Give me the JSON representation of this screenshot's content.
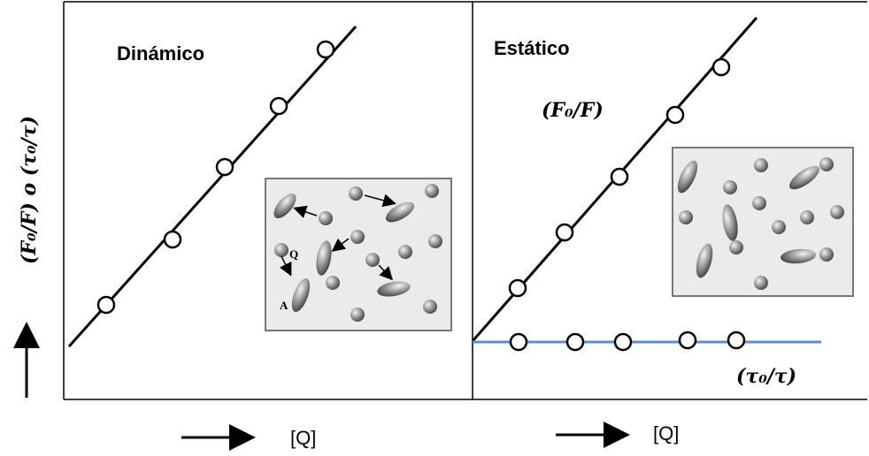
{
  "panels": [
    {
      "title": "Dinámico",
      "x_label": "[Q]",
      "inset": {
        "labels": [
          "Q",
          "A"
        ]
      }
    },
    {
      "title": "Estático",
      "x_label": "[Q]",
      "series_labels": [
        "(F₀/F)",
        "(τ₀/τ)"
      ]
    }
  ],
  "y_label": "(F₀/F) o (τ₀/τ)"
}
